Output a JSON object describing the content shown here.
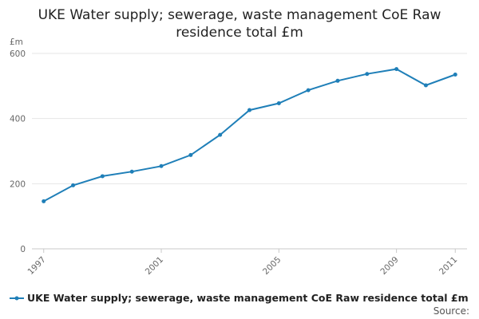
{
  "chart_data": {
    "type": "line",
    "title_line1": "UKE Water supply; sewerage, waste management CoE Raw",
    "title_line2": "residence total £m",
    "ylabel": "£m",
    "xlabel": "",
    "ylim": [
      0,
      600
    ],
    "yticks": [
      0,
      200,
      400,
      600
    ],
    "xlim": [
      1997,
      2011
    ],
    "xticks": [
      1997,
      2001,
      2005,
      2009,
      2011
    ],
    "grid": true,
    "legend_position": "bottom",
    "source_label": "Source:",
    "series": [
      {
        "name": "UKE Water supply; sewerage, waste management CoE Raw residence total £m",
        "color": "#1f7fb8",
        "x": [
          1997,
          1998,
          1999,
          2000,
          2001,
          2002,
          2003,
          2004,
          2005,
          2006,
          2007,
          2008,
          2009,
          2010,
          2011
        ],
        "values": [
          146,
          195,
          223,
          237,
          254,
          288,
          350,
          426,
          447,
          487,
          516,
          537,
          552,
          502,
          535
        ]
      }
    ]
  }
}
